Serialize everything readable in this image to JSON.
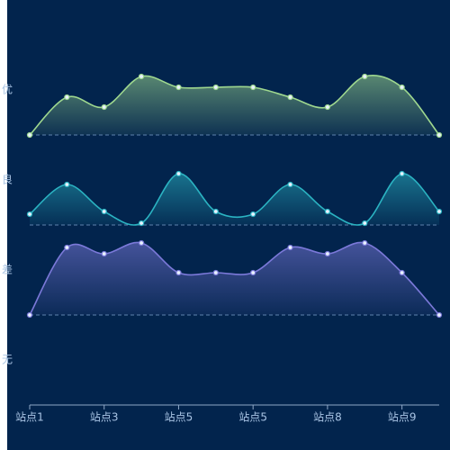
{
  "chart_data": {
    "type": "area",
    "categories": [
      "站点1",
      null,
      "站点3",
      null,
      "站点5",
      null,
      "站点5",
      null,
      "站点8",
      null,
      "站点9",
      null
    ],
    "ylim": [
      0,
      4
    ],
    "yticks": [
      {
        "value": 0.5,
        "label": "无"
      },
      {
        "value": 1.5,
        "label": "差"
      },
      {
        "value": 2.5,
        "label": "良"
      },
      {
        "value": 3.5,
        "label": "优"
      }
    ],
    "smooth": true,
    "series": [
      {
        "color": "#9fd88f",
        "baseline": 3,
        "values": [
          3.0,
          3.42,
          3.31,
          3.65,
          3.53,
          3.53,
          3.53,
          3.42,
          3.31,
          3.65,
          3.53,
          3.0
        ]
      },
      {
        "color": "#2bb3c2",
        "baseline": 2,
        "values": [
          2.12,
          2.45,
          2.15,
          2.02,
          2.57,
          2.15,
          2.12,
          2.45,
          2.15,
          2.02,
          2.57,
          2.15
        ]
      },
      {
        "color": "#7b79d9",
        "baseline": 1,
        "values": [
          1.0,
          1.75,
          1.68,
          1.8,
          1.47,
          1.47,
          1.47,
          1.75,
          1.68,
          1.8,
          1.47,
          1.0
        ]
      }
    ]
  }
}
